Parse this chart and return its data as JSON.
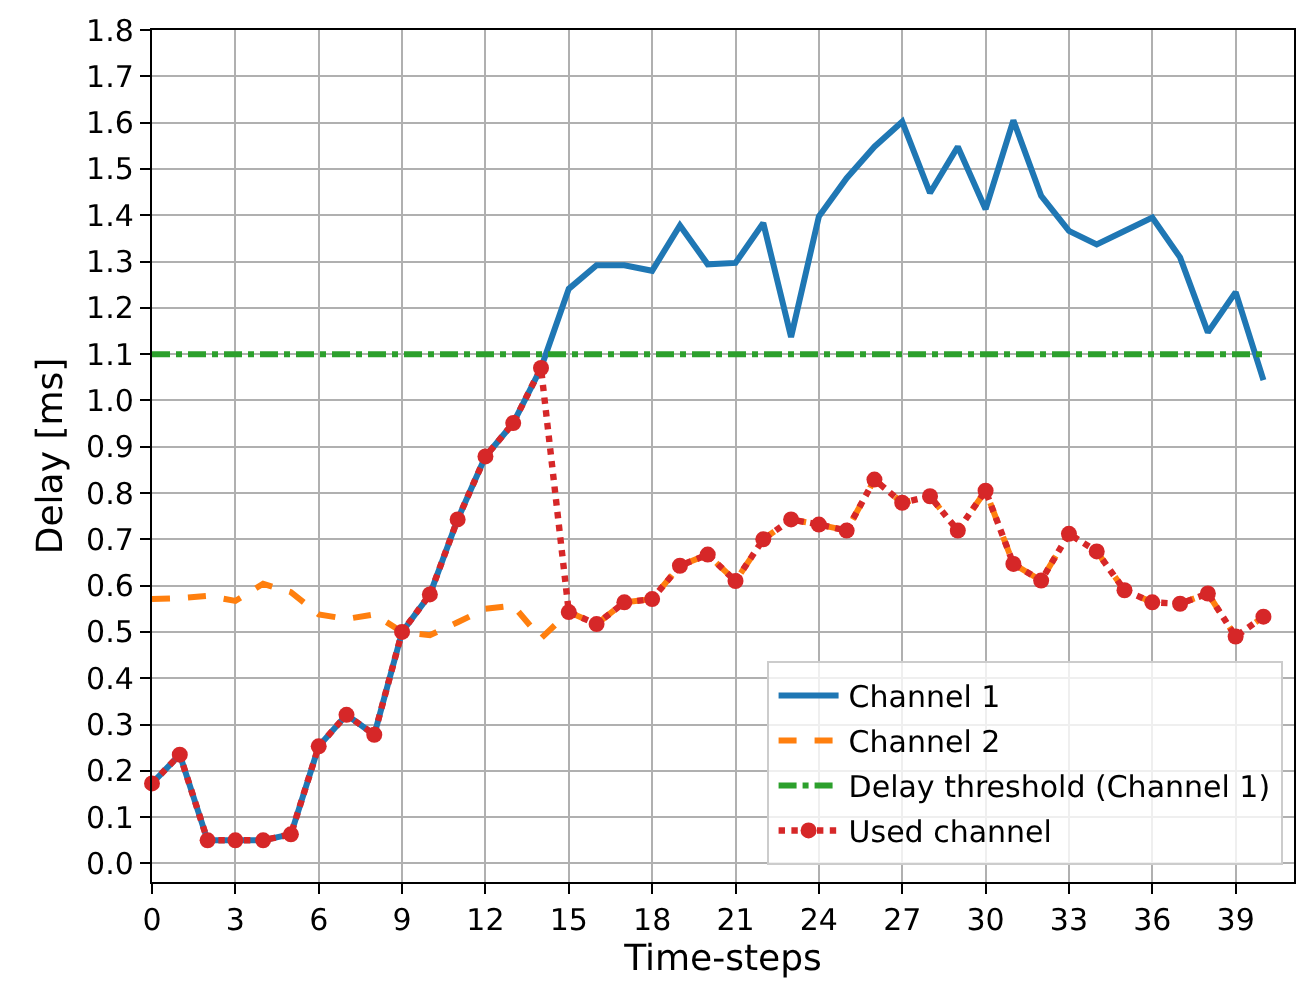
{
  "chart_data": {
    "type": "line",
    "xlabel": "Time-steps",
    "ylabel": "Delay [ms]",
    "x": [
      0,
      1,
      2,
      3,
      4,
      5,
      6,
      7,
      8,
      9,
      10,
      11,
      12,
      13,
      14,
      15,
      16,
      17,
      18,
      19,
      20,
      21,
      22,
      23,
      24,
      25,
      26,
      27,
      28,
      29,
      30,
      31,
      32,
      33,
      34,
      35,
      36,
      37,
      38,
      39,
      40
    ],
    "series": [
      {
        "name": "Channel 1",
        "color": "#1f77b4",
        "line_style": "solid",
        "marker": "none",
        "values": [
          0.173,
          0.235,
          0.05,
          0.05,
          0.05,
          0.063,
          0.253,
          0.321,
          0.278,
          0.5,
          0.581,
          0.743,
          0.879,
          0.951,
          1.07,
          1.241,
          1.292,
          1.292,
          1.28,
          1.378,
          1.294,
          1.297,
          1.383,
          1.137,
          1.397,
          1.48,
          1.548,
          1.602,
          1.448,
          1.548,
          1.413,
          1.605,
          1.442,
          1.366,
          1.337,
          1.366,
          1.395,
          1.309,
          1.147,
          1.234,
          1.044
        ]
      },
      {
        "name": "Channel 2",
        "color": "#ff7f0e",
        "line_style": "dashed",
        "marker": "none",
        "values": [
          0.571,
          0.573,
          0.578,
          0.567,
          0.604,
          0.586,
          0.538,
          0.528,
          0.538,
          0.5,
          0.493,
          0.521,
          0.55,
          0.557,
          0.486,
          0.543,
          0.517,
          0.564,
          0.571,
          0.643,
          0.667,
          0.61,
          0.7,
          0.743,
          0.732,
          0.719,
          0.829,
          0.779,
          0.793,
          0.719,
          0.805,
          0.647,
          0.611,
          0.712,
          0.674,
          0.59,
          0.564,
          0.561,
          0.583,
          0.49,
          0.533
        ]
      },
      {
        "name": "Delay threshold (Channel 1)",
        "color": "#2ca02c",
        "line_style": "dashdot",
        "marker": "none",
        "x": [
          0,
          40
        ],
        "values": [
          1.1,
          1.1
        ]
      },
      {
        "name": "Used channel",
        "color": "#d62728",
        "line_style": "dotted",
        "marker": "circle",
        "values": [
          0.173,
          0.235,
          0.05,
          0.05,
          0.05,
          0.063,
          0.253,
          0.321,
          0.278,
          0.5,
          0.581,
          0.743,
          0.879,
          0.951,
          1.07,
          0.543,
          0.517,
          0.564,
          0.571,
          0.643,
          0.667,
          0.61,
          0.7,
          0.743,
          0.732,
          0.719,
          0.829,
          0.779,
          0.793,
          0.719,
          0.805,
          0.647,
          0.611,
          0.712,
          0.674,
          0.59,
          0.564,
          0.561,
          0.583,
          0.49,
          0.533
        ]
      }
    ],
    "xlim": [
      0,
      41.1
    ],
    "ylim": [
      -0.04,
      1.8
    ],
    "xticks": [
      0,
      3,
      6,
      9,
      12,
      15,
      18,
      21,
      24,
      27,
      30,
      33,
      36,
      39
    ],
    "yticks": [
      {
        "value": 0,
        "label": "0.0"
      },
      0.1,
      0.2,
      0.3,
      0.4,
      0.5,
      0.6,
      0.7,
      0.8,
      0.9,
      {
        "value": 1,
        "label": "1.0"
      },
      1.1,
      1.2,
      1.3,
      1.4,
      1.5,
      1.6,
      1.7,
      1.8
    ],
    "grid": true,
    "legend": "bottom right"
  }
}
